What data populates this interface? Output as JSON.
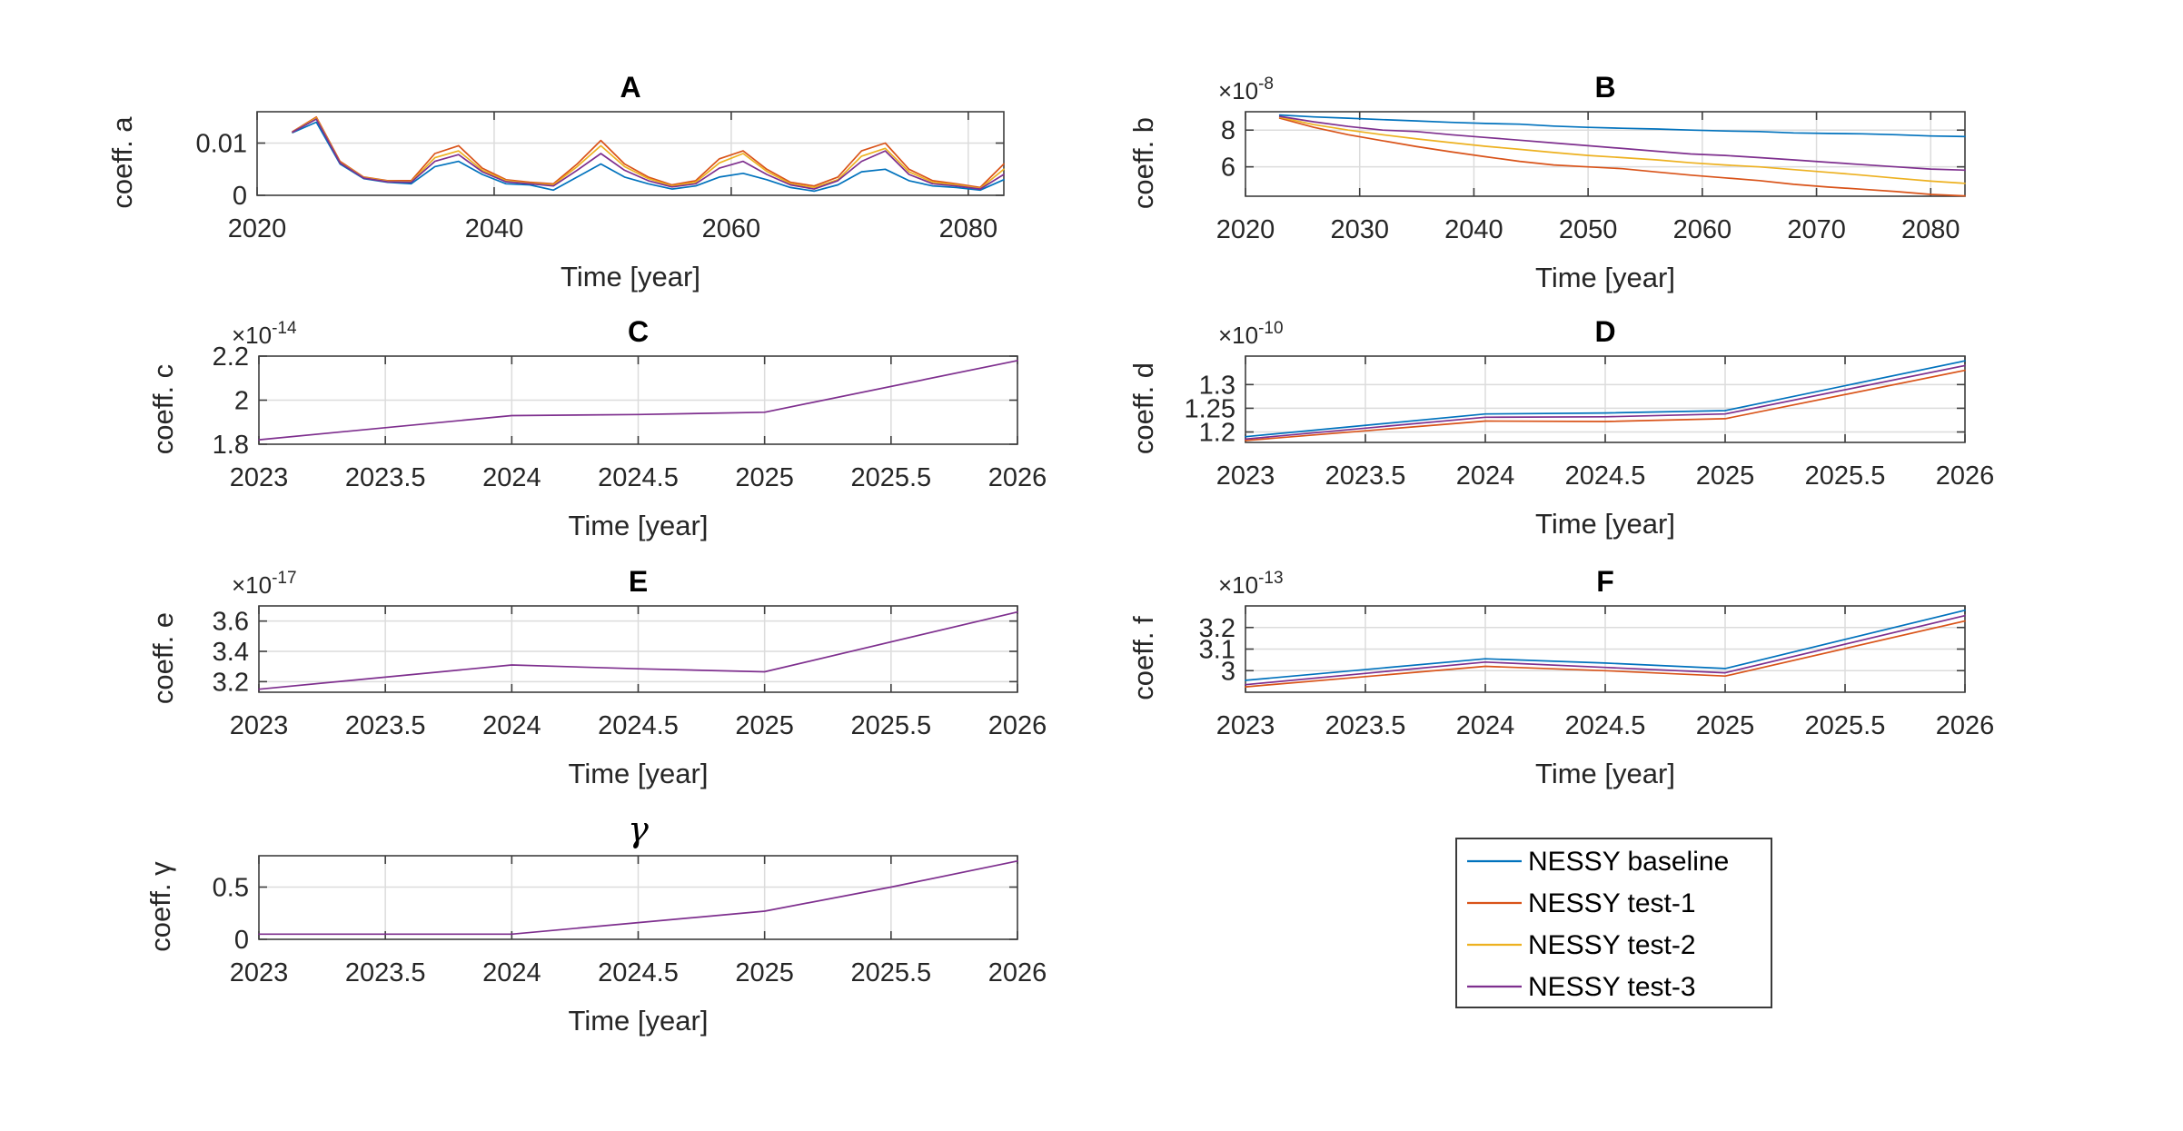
{
  "figure": {
    "background": "#ffffff",
    "axis_color": "#3f3f3f",
    "grid_color": "#dcdcdc",
    "text_color": "#262626"
  },
  "palette": {
    "blue": "#0072BD",
    "red": "#D95319",
    "yellow": "#EDB120",
    "purple": "#7E2F8E"
  },
  "legend": {
    "items": [
      {
        "label": "NESSY baseline",
        "color": "#0072BD"
      },
      {
        "label": "NESSY test-1",
        "color": "#D95319"
      },
      {
        "label": "NESSY test-2",
        "color": "#EDB120"
      },
      {
        "label": "NESSY test-3",
        "color": "#7E2F8E"
      }
    ]
  },
  "chart_data": [
    {
      "id": "a",
      "type": "line",
      "title": "A",
      "title_italic": false,
      "xlabel": "Time [year]",
      "ylabel": "coeff. a",
      "mult": null,
      "xlim": [
        2020,
        2083
      ],
      "ylim": [
        0,
        0.016
      ],
      "grid": true,
      "xticks": [
        {
          "v": 2020,
          "label": "2020"
        },
        {
          "v": 2040,
          "label": "2040"
        },
        {
          "v": 2060,
          "label": "2060"
        },
        {
          "v": 2080,
          "label": "2080"
        }
      ],
      "yticks": [
        {
          "v": 0,
          "label": "0"
        },
        {
          "v": 0.01,
          "label": "0.01"
        }
      ],
      "series": [
        {
          "name": "NESSY baseline",
          "color": "#0072BD",
          "x": [
            2023,
            2025,
            2027,
            2029,
            2031,
            2033,
            2035,
            2037,
            2039,
            2041,
            2043,
            2045,
            2047,
            2049,
            2051,
            2053,
            2055,
            2057,
            2059,
            2061,
            2063,
            2065,
            2067,
            2069,
            2071,
            2073,
            2075,
            2077,
            2079,
            2081,
            2083
          ],
          "y": [
            0.012,
            0.014,
            0.006,
            0.0032,
            0.0025,
            0.0022,
            0.0055,
            0.0065,
            0.004,
            0.0022,
            0.002,
            0.001,
            0.0035,
            0.006,
            0.0035,
            0.0022,
            0.0012,
            0.0018,
            0.0035,
            0.0042,
            0.003,
            0.0015,
            0.0008,
            0.002,
            0.0045,
            0.005,
            0.0028,
            0.0018,
            0.0015,
            0.001,
            0.003
          ]
        },
        {
          "name": "NESSY test-1",
          "color": "#D95319",
          "x": [
            2023,
            2025,
            2027,
            2029,
            2031,
            2033,
            2035,
            2037,
            2039,
            2041,
            2043,
            2045,
            2047,
            2049,
            2051,
            2053,
            2055,
            2057,
            2059,
            2061,
            2063,
            2065,
            2067,
            2069,
            2071,
            2073,
            2075,
            2077,
            2079,
            2081,
            2083
          ],
          "y": [
            0.0122,
            0.015,
            0.0065,
            0.0035,
            0.0028,
            0.0028,
            0.008,
            0.0095,
            0.0052,
            0.003,
            0.0025,
            0.0022,
            0.006,
            0.0105,
            0.006,
            0.0035,
            0.002,
            0.0028,
            0.007,
            0.0085,
            0.005,
            0.0025,
            0.0018,
            0.0035,
            0.0085,
            0.01,
            0.005,
            0.0028,
            0.0022,
            0.0015,
            0.006
          ]
        },
        {
          "name": "NESSY test-2",
          "color": "#EDB120",
          "x": [
            2023,
            2025,
            2027,
            2029,
            2031,
            2033,
            2035,
            2037,
            2039,
            2041,
            2043,
            2045,
            2047,
            2049,
            2051,
            2053,
            2055,
            2057,
            2059,
            2061,
            2063,
            2065,
            2067,
            2069,
            2071,
            2073,
            2075,
            2077,
            2079,
            2081,
            2083
          ],
          "y": [
            0.0121,
            0.0148,
            0.0063,
            0.0034,
            0.0027,
            0.0026,
            0.0072,
            0.0085,
            0.0048,
            0.0028,
            0.0023,
            0.002,
            0.0055,
            0.0095,
            0.0055,
            0.0032,
            0.0018,
            0.0025,
            0.0062,
            0.008,
            0.0046,
            0.0022,
            0.0015,
            0.003,
            0.0075,
            0.009,
            0.0045,
            0.0025,
            0.002,
            0.0013,
            0.005
          ]
        },
        {
          "name": "NESSY test-3",
          "color": "#7E2F8E",
          "x": [
            2023,
            2025,
            2027,
            2029,
            2031,
            2033,
            2035,
            2037,
            2039,
            2041,
            2043,
            2045,
            2047,
            2049,
            2051,
            2053,
            2055,
            2057,
            2059,
            2061,
            2063,
            2065,
            2067,
            2069,
            2071,
            2073,
            2075,
            2077,
            2079,
            2081,
            2083
          ],
          "y": [
            0.0121,
            0.0146,
            0.0062,
            0.0033,
            0.0026,
            0.0025,
            0.0065,
            0.0078,
            0.0045,
            0.0026,
            0.0022,
            0.0018,
            0.0048,
            0.008,
            0.0048,
            0.0028,
            0.0016,
            0.0022,
            0.0052,
            0.0065,
            0.004,
            0.002,
            0.0012,
            0.0028,
            0.0065,
            0.0085,
            0.004,
            0.0022,
            0.0018,
            0.0012,
            0.004
          ]
        }
      ]
    },
    {
      "id": "b",
      "type": "line",
      "title": "B",
      "title_italic": false,
      "xlabel": "Time [year]",
      "ylabel": "coeff. b",
      "mult": {
        "base": "×10",
        "exp": "-8"
      },
      "xlim": [
        2020,
        2083
      ],
      "ylim": [
        4.4,
        9.0
      ],
      "grid": true,
      "xticks": [
        {
          "v": 2020,
          "label": "2020"
        },
        {
          "v": 2030,
          "label": "2030"
        },
        {
          "v": 2040,
          "label": "2040"
        },
        {
          "v": 2050,
          "label": "2050"
        },
        {
          "v": 2060,
          "label": "2060"
        },
        {
          "v": 2070,
          "label": "2070"
        },
        {
          "v": 2080,
          "label": "2080"
        }
      ],
      "yticks": [
        {
          "v": 6,
          "label": "6"
        },
        {
          "v": 8,
          "label": "8"
        }
      ],
      "series": [
        {
          "name": "NESSY baseline",
          "color": "#0072BD",
          "x": [
            2023,
            2026,
            2029,
            2032,
            2035,
            2038,
            2041,
            2044,
            2047,
            2050,
            2053,
            2056,
            2059,
            2062,
            2065,
            2068,
            2071,
            2074,
            2077,
            2080,
            2083
          ],
          "y": [
            8.82,
            8.72,
            8.65,
            8.57,
            8.5,
            8.42,
            8.36,
            8.32,
            8.22,
            8.15,
            8.1,
            8.06,
            8.0,
            7.95,
            7.92,
            7.85,
            7.82,
            7.8,
            7.75,
            7.68,
            7.65
          ]
        },
        {
          "name": "NESSY test-1",
          "color": "#D95319",
          "x": [
            2023,
            2026,
            2029,
            2032,
            2035,
            2038,
            2041,
            2044,
            2047,
            2050,
            2053,
            2056,
            2059,
            2062,
            2065,
            2068,
            2071,
            2074,
            2077,
            2080,
            2083
          ],
          "y": [
            8.65,
            8.15,
            7.75,
            7.42,
            7.1,
            6.82,
            6.55,
            6.3,
            6.1,
            6.0,
            5.9,
            5.72,
            5.55,
            5.4,
            5.25,
            5.05,
            4.9,
            4.78,
            4.65,
            4.5,
            4.42
          ]
        },
        {
          "name": "NESSY test-2",
          "color": "#EDB120",
          "x": [
            2023,
            2026,
            2029,
            2032,
            2035,
            2038,
            2041,
            2044,
            2047,
            2050,
            2053,
            2056,
            2059,
            2062,
            2065,
            2068,
            2071,
            2074,
            2077,
            2080,
            2083
          ],
          "y": [
            8.7,
            8.3,
            8.0,
            7.75,
            7.52,
            7.32,
            7.12,
            6.95,
            6.78,
            6.62,
            6.5,
            6.38,
            6.22,
            6.1,
            6.0,
            5.85,
            5.7,
            5.55,
            5.38,
            5.22,
            5.1
          ]
        },
        {
          "name": "NESSY test-3",
          "color": "#7E2F8E",
          "x": [
            2023,
            2026,
            2029,
            2032,
            2035,
            2038,
            2041,
            2044,
            2047,
            2050,
            2053,
            2056,
            2059,
            2062,
            2065,
            2068,
            2071,
            2074,
            2077,
            2080,
            2083
          ],
          "y": [
            8.75,
            8.45,
            8.2,
            8.0,
            7.92,
            7.75,
            7.6,
            7.45,
            7.3,
            7.15,
            7.0,
            6.85,
            6.7,
            6.62,
            6.5,
            6.38,
            6.25,
            6.12,
            6.0,
            5.88,
            5.82
          ]
        }
      ]
    },
    {
      "id": "c",
      "type": "line",
      "title": "C",
      "title_italic": false,
      "xlabel": "Time [year]",
      "ylabel": "coeff. c",
      "mult": {
        "base": "×10",
        "exp": "-14"
      },
      "xlim": [
        2023,
        2026
      ],
      "ylim": [
        1.8,
        2.2
      ],
      "grid": true,
      "note": "all four runs overlap; test-3 drawn on top",
      "xticks": [
        {
          "v": 2023,
          "label": "2023"
        },
        {
          "v": 2023.5,
          "label": "2023.5"
        },
        {
          "v": 2024,
          "label": "2024"
        },
        {
          "v": 2024.5,
          "label": "2024.5"
        },
        {
          "v": 2025,
          "label": "2025"
        },
        {
          "v": 2025.5,
          "label": "2025.5"
        },
        {
          "v": 2026,
          "label": "2026"
        }
      ],
      "yticks": [
        {
          "v": 1.8,
          "label": "1.8"
        },
        {
          "v": 2,
          "label": "2"
        },
        {
          "v": 2.2,
          "label": "2.2"
        }
      ],
      "series": [
        {
          "name": "NESSY test-3",
          "color": "#7E2F8E",
          "x": [
            2023,
            2024,
            2024.5,
            2025,
            2026
          ],
          "y": [
            1.82,
            1.93,
            1.935,
            1.945,
            2.18
          ]
        }
      ]
    },
    {
      "id": "d",
      "type": "line",
      "title": "D",
      "title_italic": false,
      "xlabel": "Time [year]",
      "ylabel": "coeff. d",
      "mult": {
        "base": "×10",
        "exp": "-10"
      },
      "xlim": [
        2023,
        2026
      ],
      "ylim": [
        1.178,
        1.36
      ],
      "grid": true,
      "xticks": [
        {
          "v": 2023,
          "label": "2023"
        },
        {
          "v": 2023.5,
          "label": "2023.5"
        },
        {
          "v": 2024,
          "label": "2024"
        },
        {
          "v": 2024.5,
          "label": "2024.5"
        },
        {
          "v": 2025,
          "label": "2025"
        },
        {
          "v": 2025.5,
          "label": "2025.5"
        },
        {
          "v": 2026,
          "label": "2026"
        }
      ],
      "yticks": [
        {
          "v": 1.2,
          "label": "1.2"
        },
        {
          "v": 1.25,
          "label": "1.25"
        },
        {
          "v": 1.3,
          "label": "1.3"
        }
      ],
      "series": [
        {
          "name": "NESSY test-1",
          "color": "#D95319",
          "x": [
            2023,
            2024,
            2024.5,
            2025,
            2026
          ],
          "y": [
            1.182,
            1.223,
            1.222,
            1.228,
            1.33
          ]
        },
        {
          "name": "NESSY test-3",
          "color": "#7E2F8E",
          "x": [
            2023,
            2024,
            2024.5,
            2025,
            2026
          ],
          "y": [
            1.185,
            1.231,
            1.232,
            1.238,
            1.34
          ]
        },
        {
          "name": "NESSY baseline",
          "color": "#0072BD",
          "x": [
            2023,
            2024,
            2024.5,
            2025,
            2026
          ],
          "y": [
            1.19,
            1.238,
            1.24,
            1.245,
            1.35
          ]
        }
      ]
    },
    {
      "id": "e",
      "type": "line",
      "title": "E",
      "title_italic": false,
      "xlabel": "Time [year]",
      "ylabel": "coeff. e",
      "mult": {
        "base": "×10",
        "exp": "-17"
      },
      "xlim": [
        2023,
        2026
      ],
      "ylim": [
        3.13,
        3.7
      ],
      "grid": true,
      "note": "all four runs overlap; test-3 drawn on top",
      "xticks": [
        {
          "v": 2023,
          "label": "2023"
        },
        {
          "v": 2023.5,
          "label": "2023.5"
        },
        {
          "v": 2024,
          "label": "2024"
        },
        {
          "v": 2024.5,
          "label": "2024.5"
        },
        {
          "v": 2025,
          "label": "2025"
        },
        {
          "v": 2025.5,
          "label": "2025.5"
        },
        {
          "v": 2026,
          "label": "2026"
        }
      ],
      "yticks": [
        {
          "v": 3.2,
          "label": "3.2"
        },
        {
          "v": 3.4,
          "label": "3.4"
        },
        {
          "v": 3.6,
          "label": "3.6"
        }
      ],
      "series": [
        {
          "name": "NESSY test-3",
          "color": "#7E2F8E",
          "x": [
            2023,
            2024,
            2024.5,
            2025,
            2026
          ],
          "y": [
            3.15,
            3.31,
            3.285,
            3.265,
            3.66
          ]
        }
      ]
    },
    {
      "id": "f",
      "type": "line",
      "title": "F",
      "title_italic": false,
      "xlabel": "Time [year]",
      "ylabel": "coeff. f",
      "mult": {
        "base": "×10",
        "exp": "-13"
      },
      "xlim": [
        2023,
        2026
      ],
      "ylim": [
        2.9,
        3.3
      ],
      "grid": true,
      "xticks": [
        {
          "v": 2023,
          "label": "2023"
        },
        {
          "v": 2023.5,
          "label": "2023.5"
        },
        {
          "v": 2024,
          "label": "2024"
        },
        {
          "v": 2024.5,
          "label": "2024.5"
        },
        {
          "v": 2025,
          "label": "2025"
        },
        {
          "v": 2025.5,
          "label": "2025.5"
        },
        {
          "v": 2026,
          "label": "2026"
        }
      ],
      "yticks": [
        {
          "v": 3,
          "label": "3"
        },
        {
          "v": 3.1,
          "label": "3.1"
        },
        {
          "v": 3.2,
          "label": "3.2"
        }
      ],
      "series": [
        {
          "name": "NESSY test-1",
          "color": "#D95319",
          "x": [
            2023,
            2024,
            2024.5,
            2025,
            2026
          ],
          "y": [
            2.925,
            3.02,
            3.0,
            2.975,
            3.23
          ]
        },
        {
          "name": "NESSY test-3",
          "color": "#7E2F8E",
          "x": [
            2023,
            2024,
            2024.5,
            2025,
            2026
          ],
          "y": [
            2.935,
            3.04,
            3.015,
            2.99,
            3.255
          ]
        },
        {
          "name": "NESSY baseline",
          "color": "#0072BD",
          "x": [
            2023,
            2024,
            2024.5,
            2025,
            2026
          ],
          "y": [
            2.955,
            3.055,
            3.035,
            3.01,
            3.28
          ]
        }
      ]
    },
    {
      "id": "g",
      "type": "line",
      "title": "γ",
      "title_italic": true,
      "xlabel": "Time [year]",
      "ylabel": "coeff. γ",
      "mult": null,
      "xlim": [
        2023,
        2026
      ],
      "ylim": [
        0,
        0.8
      ],
      "grid": true,
      "note": "all four runs overlap; test-3 drawn on top",
      "xticks": [
        {
          "v": 2023,
          "label": "2023"
        },
        {
          "v": 2023.5,
          "label": "2023.5"
        },
        {
          "v": 2024,
          "label": "2024"
        },
        {
          "v": 2024.5,
          "label": "2024.5"
        },
        {
          "v": 2025,
          "label": "2025"
        },
        {
          "v": 2025.5,
          "label": "2025.5"
        },
        {
          "v": 2026,
          "label": "2026"
        }
      ],
      "yticks": [
        {
          "v": 0,
          "label": "0"
        },
        {
          "v": 0.5,
          "label": "0.5"
        }
      ],
      "series": [
        {
          "name": "NESSY test-3",
          "color": "#7E2F8E",
          "x": [
            2023,
            2023.5,
            2024,
            2024.5,
            2025,
            2025.5,
            2026
          ],
          "y": [
            0.05,
            0.05,
            0.05,
            0.16,
            0.27,
            0.5,
            0.75
          ]
        }
      ]
    }
  ]
}
